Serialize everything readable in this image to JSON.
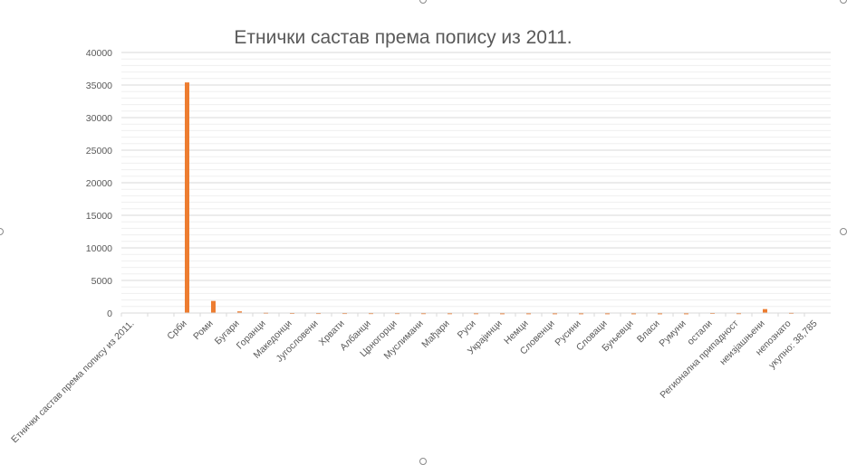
{
  "chart_data": {
    "type": "bar",
    "title": "Етнички састав према попису из 2011.",
    "xlabel": "",
    "ylabel": "",
    "ylim": [
      0,
      40000
    ],
    "yticks": [
      0,
      5000,
      10000,
      15000,
      20000,
      25000,
      30000,
      35000,
      40000
    ],
    "grid": true,
    "bar_color": "#ed7d31",
    "categories": [
      "Етнички састав према попису из 2011.",
      "",
      "Срби",
      "Роми",
      "Бугари",
      "Горанци",
      "Македонци",
      "Југословени",
      "Хрвати",
      "Албанци",
      "Црногорци",
      "Муслимани",
      "Мађари",
      "Руси",
      "Украјинци",
      "Немци",
      "Словенци",
      "Русини",
      "Словаци",
      "Буњевци",
      "Власи",
      "Румуни",
      "остали",
      "Регионална припадност",
      "неизјашњени",
      "непознато",
      "укупно: 38,785"
    ],
    "values": [
      0,
      0,
      35400,
      1850,
      250,
      90,
      70,
      60,
      60,
      50,
      50,
      40,
      30,
      30,
      20,
      20,
      20,
      20,
      20,
      15,
      15,
      15,
      70,
      40,
      600,
      80,
      0
    ]
  }
}
